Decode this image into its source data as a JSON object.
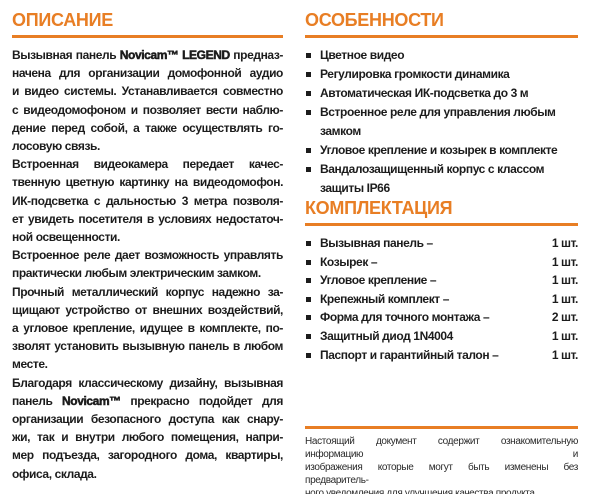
{
  "page": {
    "accent_color": "#E87E24",
    "text_color": "#1C1C1C",
    "product": "Novicam LEGEND"
  },
  "description": {
    "title": "ОПИСАНИЕ",
    "paragraphs": [
      [
        "Вызывная панель **Novicam™ LEGEND** предназ-",
        "начена для организации домофонной аудио",
        "и видео системы. Устанавливается совместно",
        "с видеодомофоном и позволяет вести наблю-",
        "дение перед собой, а также осуществлять го-",
        "лосовую связь."
      ],
      [
        "Встроенная видеокамера передает качес-",
        "твенную цветную картинку на видеодомофон.",
        "ИК-подсветка с дальностью 3 метра позволя-",
        "ет увидеть посетителя в условиях недостаточ-",
        "ной освещенности."
      ],
      [
        "Встроенное реле дает возможность управлять",
        "практически любым электрическим замком."
      ],
      [
        "Прочный металлический корпус надежно за-",
        "щищают устройство от внешних воздействий,",
        "а угловое крепление, идущее в комплекте, по-",
        "зволят установить вызывную панель в любом",
        "месте."
      ],
      [
        "Благодаря классическому дизайну, вызывная",
        "панель **Novicam™** прекрасно подойдет для",
        "организации безопасного доступа как снару-",
        "жи, так и внутри любого помещения, напри-",
        "мер подъезда, загородного дома, квартиры,",
        "офиса, склада."
      ]
    ]
  },
  "features": {
    "title": "ОСОБЕННОСТИ",
    "items": [
      "Цветное видео",
      "Регулировка громкости динамика",
      "Автоматическая ИК-подсветка до 3 м",
      "Встроенное реле для управления любым\nзамком",
      "Угловое крепление и козырек в комплекте",
      "Вандалозащищенный корпус с классом\nзащиты IP66"
    ]
  },
  "package": {
    "title": "КОМПЛЕКТАЦИЯ",
    "items": [
      {
        "name": "Вызывная панель –",
        "qty": "1 шт."
      },
      {
        "name": "Козырек –",
        "qty": "1 шт."
      },
      {
        "name": "Угловое крепление –",
        "qty": "1 шт."
      },
      {
        "name": "Крепежный комплект –",
        "qty": "1 шт."
      },
      {
        "name": "Форма для точного монтажа –",
        "qty": "2 шт."
      },
      {
        "name": "Защитный диод 1N4004",
        "qty": "1 шт."
      },
      {
        "name": "Паспорт и гарантийный талон –",
        "qty": "1 шт."
      }
    ]
  },
  "footer": {
    "lines": [
      "Настоящий документ содержит ознакомительную информацию и",
      "изображения которые могут быть изменены без предваритель-",
      "ного уведомления для улучшения качества продукта"
    ]
  }
}
